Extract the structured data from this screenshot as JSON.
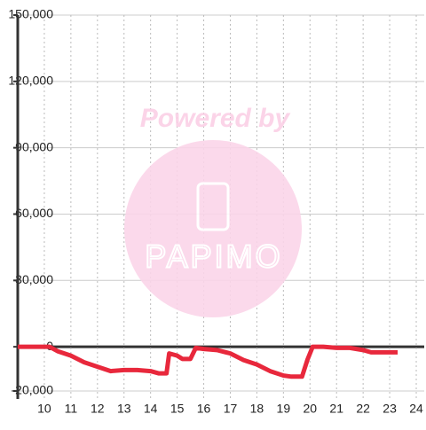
{
  "chart_data": {
    "type": "line",
    "x": [
      9,
      10,
      10.2,
      10.5,
      11,
      11.5,
      12,
      12.5,
      13,
      13.5,
      14,
      14.3,
      14.6,
      14.7,
      15,
      15.2,
      15.5,
      15.7,
      16,
      16.5,
      17,
      17.5,
      18,
      18.5,
      19,
      19.3,
      19.7,
      19.9,
      20.1,
      20.5,
      21,
      21.5,
      22,
      22.3,
      23,
      23.3
    ],
    "series": [
      {
        "color": "#e8283c",
        "values": [
          0,
          0,
          0,
          -2000,
          -4000,
          -7000,
          -9000,
          -11000,
          -10500,
          -10500,
          -11000,
          -12000,
          -12000,
          -3000,
          -4000,
          -5500,
          -5500,
          -500,
          -1000,
          -1500,
          -3000,
          -6000,
          -8000,
          -11000,
          -13000,
          -13500,
          -13500,
          -6000,
          0,
          0,
          -500,
          -500,
          -1500,
          -2500,
          -2500,
          -2500
        ]
      }
    ],
    "xlim": [
      9,
      24.3
    ],
    "ylim": [
      -23600,
      150000
    ],
    "xticks": [
      10,
      11,
      12,
      13,
      14,
      15,
      16,
      17,
      18,
      19,
      20,
      21,
      22,
      23,
      24
    ],
    "yticks": [
      {
        "value": -20000,
        "label": "-20,000"
      },
      0,
      {
        "value": 30000,
        "label": "30,000"
      },
      {
        "value": 60000,
        "label": "60,000"
      },
      {
        "value": 90000,
        "label": "90,000"
      },
      {
        "value": 120000,
        "label": "120,000"
      },
      {
        "value": 150000,
        "label": "150,000"
      }
    ],
    "grid": true
  },
  "watermark": {
    "line1": "Powered by",
    "line2": "PAPIMO"
  }
}
